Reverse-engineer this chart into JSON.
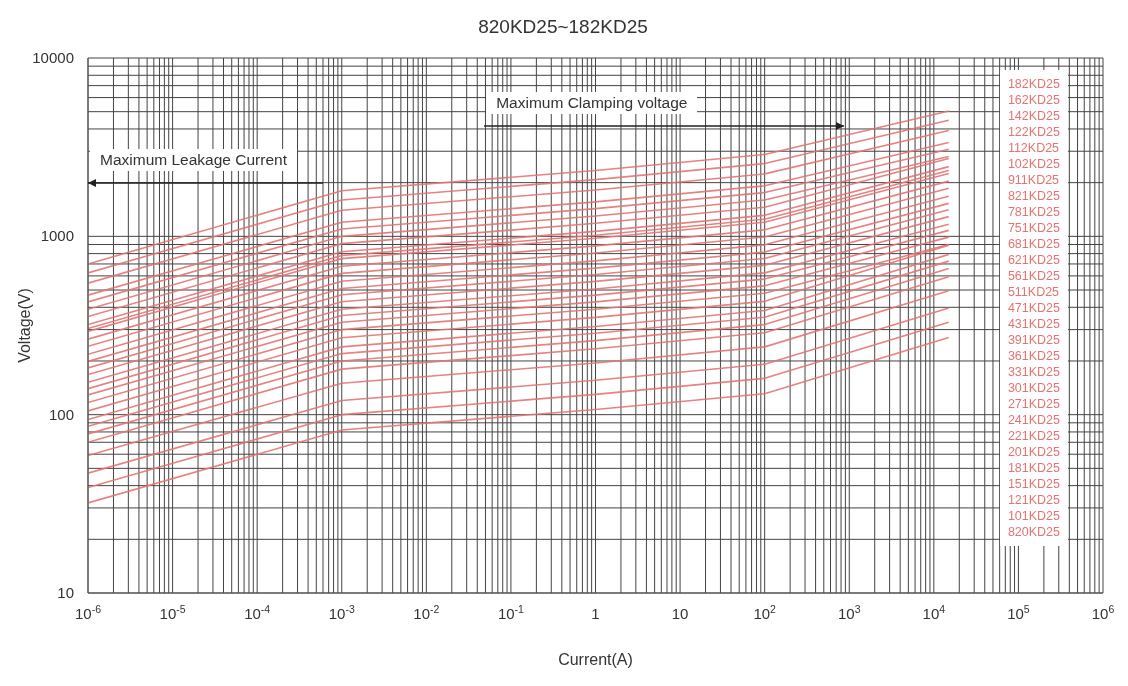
{
  "chart_data": {
    "type": "line",
    "title": "820KD25~182KD25",
    "xlabel": "Current(A)",
    "ylabel": "Voltage(V)",
    "log": "xy",
    "grid": true,
    "legend": "right",
    "marker": "none",
    "line_style": "solid",
    "xlim": [
      1e-06,
      1000000.0
    ],
    "ylim": [
      10,
      10000
    ],
    "xticks": [
      {
        "value": 1e-06,
        "label": "10$^{-6}$"
      },
      {
        "value": 1e-05,
        "label": "10$^{-5}$"
      },
      {
        "value": 0.0001,
        "label": "10$^{-4}$"
      },
      {
        "value": 0.001,
        "label": "10$^{-3}$"
      },
      {
        "value": 0.01,
        "label": "10$^{-2}$"
      },
      {
        "value": 0.1,
        "label": "10$^{-1}$"
      },
      1,
      10,
      {
        "value": 100,
        "label": "10$^{2}$"
      },
      {
        "value": 1000,
        "label": "10$^{3}$"
      },
      {
        "value": 10000,
        "label": "10$^{4}$"
      },
      {
        "value": 100000,
        "label": "10$^{5}$"
      },
      {
        "value": 1000000,
        "label": "10$^{6}$"
      }
    ],
    "yticks": [
      10,
      100,
      1000,
      10000
    ],
    "x": [
      1e-06,
      0.001,
      1,
      100,
      15000
    ],
    "annotations": [
      "Maximum Clamping voltage",
      "Maximum Leakage Current"
    ],
    "series": [
      {
        "name": "182KD25",
        "color": "#e57373",
        "values": [
          700,
          1800,
          2340,
          2880,
          5040
        ]
      },
      {
        "name": "162KD25",
        "color": "#e57373",
        "values": [
          624,
          1600,
          2080,
          2560,
          4480
        ]
      },
      {
        "name": "142KD25",
        "color": "#e57373",
        "values": [
          546,
          1400,
          1820,
          2240,
          3920
        ]
      },
      {
        "name": "122KD25",
        "color": "#e57373",
        "values": [
          468,
          1200,
          1560,
          1920,
          3360
        ]
      },
      {
        "name": "112KD25",
        "color": "#e57373",
        "values": [
          429,
          1100,
          1430,
          1760,
          3080
        ]
      },
      {
        "name": "102KD25",
        "color": "#e57373",
        "values": [
          390,
          1000,
          1300,
          1600,
          2800
        ]
      },
      {
        "name": "911KD25",
        "color": "#e57373",
        "values": [
          355,
          910,
          1183,
          1456,
          2730
        ]
      },
      {
        "name": "821KD25",
        "color": "#e57373",
        "values": [
          320,
          820,
          1066,
          1312,
          2460
        ]
      },
      {
        "name": "781KD25",
        "color": "#e57373",
        "values": [
          304,
          780,
          1014,
          1248,
          2340
        ]
      },
      {
        "name": "751KD25",
        "color": "#e57373",
        "values": [
          293,
          750,
          975,
          1200,
          2250
        ]
      },
      {
        "name": "681KD25",
        "color": "#e57373",
        "values": [
          265,
          680,
          884,
          1088,
          2040
        ]
      },
      {
        "name": "621KD25",
        "color": "#e57373",
        "values": [
          242,
          620,
          806,
          992,
          1860
        ]
      },
      {
        "name": "561KD25",
        "color": "#e57373",
        "values": [
          218,
          560,
          728,
          896,
          1680
        ]
      },
      {
        "name": "511KD25",
        "color": "#e57373",
        "values": [
          199,
          510,
          663,
          816,
          1530
        ]
      },
      {
        "name": "471KD25",
        "color": "#e57373",
        "values": [
          183,
          470,
          611,
          752,
          1410
        ]
      },
      {
        "name": "431KD25",
        "color": "#e57373",
        "values": [
          168,
          430,
          559,
          688,
          1290
        ]
      },
      {
        "name": "391KD25",
        "color": "#e57373",
        "values": [
          152,
          390,
          507,
          624,
          1170
        ]
      },
      {
        "name": "361KD25",
        "color": "#e57373",
        "values": [
          140,
          360,
          468,
          576,
          1080
        ]
      },
      {
        "name": "331KD25",
        "color": "#e57373",
        "values": [
          129,
          330,
          429,
          528,
          990
        ]
      },
      {
        "name": "301KD25",
        "color": "#e57373",
        "values": [
          117,
          300,
          390,
          480,
          900
        ]
      },
      {
        "name": "271KD25",
        "color": "#e57373",
        "values": [
          105,
          270,
          351,
          432,
          891
        ]
      },
      {
        "name": "241KD25",
        "color": "#e57373",
        "values": [
          94,
          240,
          312,
          384,
          792
        ]
      },
      {
        "name": "221KD25",
        "color": "#e57373",
        "values": [
          86,
          220,
          286,
          352,
          726
        ]
      },
      {
        "name": "201KD25",
        "color": "#e57373",
        "values": [
          78,
          200,
          260,
          320,
          660
        ]
      },
      {
        "name": "181KD25",
        "color": "#e57373",
        "values": [
          70,
          180,
          234,
          288,
          594
        ]
      },
      {
        "name": "151KD25",
        "color": "#e57373",
        "values": [
          59,
          150,
          195,
          240,
          495
        ]
      },
      {
        "name": "121KD25",
        "color": "#e57373",
        "values": [
          47,
          120,
          156,
          192,
          396
        ]
      },
      {
        "name": "101KD25",
        "color": "#e57373",
        "values": [
          39,
          100,
          130,
          160,
          330
        ]
      },
      {
        "name": "820KD25",
        "color": "#e57373",
        "values": [
          32,
          82,
          107,
          131,
          271
        ]
      }
    ]
  }
}
